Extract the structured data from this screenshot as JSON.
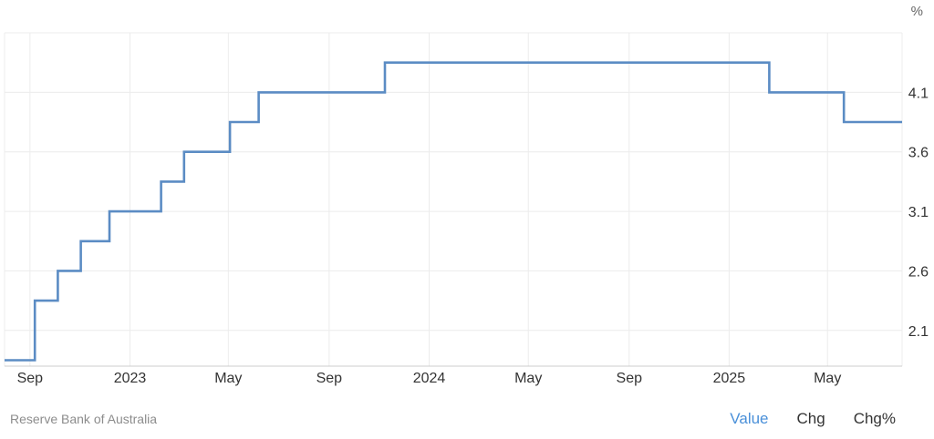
{
  "chart_data": {
    "type": "line",
    "step": true,
    "unit_label": "%",
    "x_tick_labels": [
      "Sep",
      "2023",
      "May",
      "Sep",
      "2024",
      "May",
      "Sep",
      "2025",
      "May"
    ],
    "x_ticks": [
      "2022-09-01",
      "2023-01-01",
      "2023-05-01",
      "2023-09-01",
      "2024-01-01",
      "2024-05-01",
      "2024-09-01",
      "2025-01-01",
      "2025-05-01"
    ],
    "y_ticks": [
      2.1,
      2.6,
      3.1,
      3.6,
      4.1
    ],
    "ylim": [
      1.8,
      4.6
    ],
    "xlim": [
      "2022-08-01",
      "2025-07-31"
    ],
    "grid": true,
    "series": [
      {
        "color": "#5b8cc4",
        "points": [
          {
            "x": "2022-08-01",
            "y": 1.85
          },
          {
            "x": "2022-09-07",
            "y": 2.35
          },
          {
            "x": "2022-10-05",
            "y": 2.6
          },
          {
            "x": "2022-11-02",
            "y": 2.85
          },
          {
            "x": "2022-12-07",
            "y": 3.1
          },
          {
            "x": "2023-02-08",
            "y": 3.35
          },
          {
            "x": "2023-03-08",
            "y": 3.6
          },
          {
            "x": "2023-05-03",
            "y": 3.85
          },
          {
            "x": "2023-06-07",
            "y": 4.1
          },
          {
            "x": "2023-11-08",
            "y": 4.35
          },
          {
            "x": "2025-02-19",
            "y": 4.1
          },
          {
            "x": "2025-05-21",
            "y": 3.85
          },
          {
            "x": "2025-07-31",
            "y": 3.85
          }
        ]
      }
    ]
  },
  "footer": {
    "source": "Reserve Bank of Australia",
    "tabs": [
      "Value",
      "Chg",
      "Chg%"
    ],
    "active_tab": "Value"
  },
  "colors": {
    "accent": "#4a90d9",
    "line": "#5b8cc4",
    "grid": "#ececec",
    "axis_text": "#333333",
    "source_text": "#8c8c8c"
  }
}
